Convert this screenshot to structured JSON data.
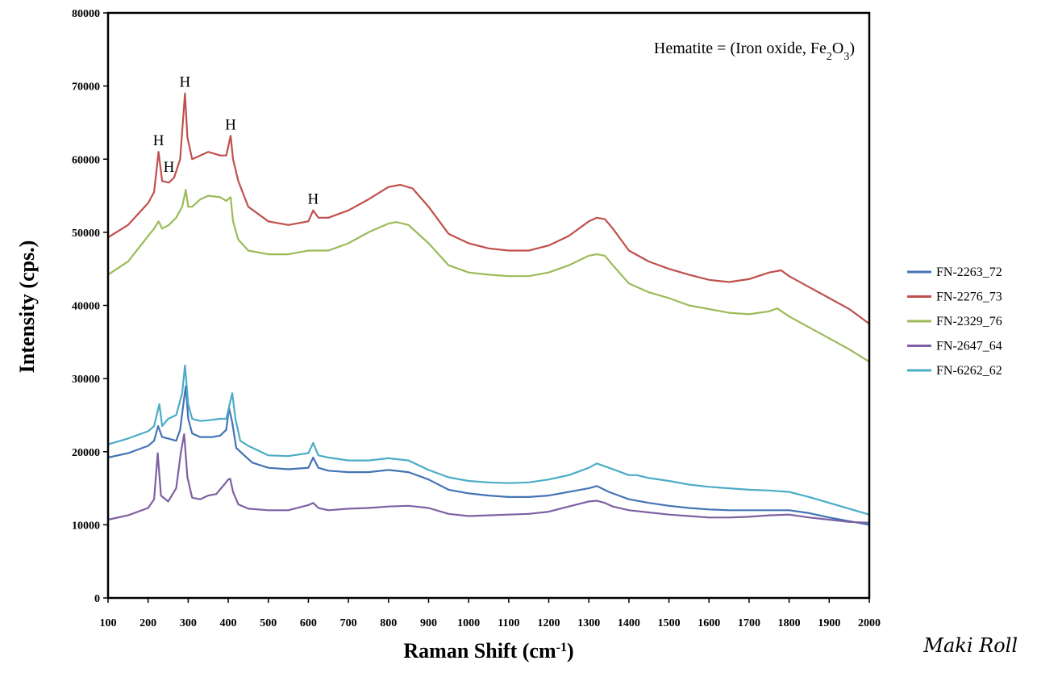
{
  "chart_data": {
    "type": "line",
    "title": "",
    "xlabel_main": "Raman Shift (cm",
    "xlabel_sup": "-1",
    "xlabel_end": ")",
    "ylabel": "Intensity (cps.)",
    "xlim": [
      100,
      2000
    ],
    "ylim": [
      0,
      80000
    ],
    "xticks": [
      100,
      200,
      300,
      400,
      500,
      600,
      700,
      800,
      900,
      1000,
      1100,
      1200,
      1300,
      1400,
      1500,
      1600,
      1700,
      1800,
      1900,
      2000
    ],
    "yticks": [
      0,
      10000,
      20000,
      30000,
      40000,
      50000,
      60000,
      70000,
      80000
    ],
    "grid": false,
    "legend_position": "right",
    "annotation": {
      "prefix": "Hematite = (Iron oxide, Fe",
      "sub1": "2",
      "mid": "O",
      "sub2": "3",
      "suffix": ")"
    },
    "peak_labels": [
      {
        "text": "H",
        "x": 226,
        "y": 61000
      },
      {
        "text": "H",
        "x": 252,
        "y": 57400
      },
      {
        "text": "H",
        "x": 292,
        "y": 69000
      },
      {
        "text": "H",
        "x": 406,
        "y": 63200
      },
      {
        "text": "H",
        "x": 612,
        "y": 53000
      }
    ],
    "series": [
      {
        "name": "FN-2263_72",
        "color": "#4473b5",
        "x": [
          100,
          150,
          200,
          215,
          225,
          235,
          250,
          270,
          280,
          288,
          294,
          300,
          310,
          330,
          360,
          380,
          395,
          402,
          410,
          420,
          440,
          460,
          500,
          550,
          600,
          612,
          625,
          650,
          700,
          750,
          800,
          850,
          900,
          950,
          1000,
          1050,
          1100,
          1150,
          1200,
          1250,
          1300,
          1320,
          1350,
          1400,
          1450,
          1500,
          1550,
          1600,
          1650,
          1700,
          1750,
          1800,
          1850,
          1900,
          1950,
          2000
        ],
        "y": [
          19200,
          19800,
          20800,
          21500,
          23500,
          22000,
          21800,
          21500,
          23000,
          26500,
          29000,
          24500,
          22500,
          22000,
          22000,
          22200,
          23000,
          26000,
          24000,
          20500,
          19500,
          18500,
          17800,
          17600,
          17800,
          19200,
          17800,
          17400,
          17200,
          17200,
          17500,
          17200,
          16200,
          14800,
          14300,
          14000,
          13800,
          13800,
          14000,
          14500,
          15000,
          15300,
          14500,
          13500,
          13000,
          12600,
          12300,
          12100,
          12000,
          12000,
          12000,
          12000,
          11600,
          11000,
          10500,
          10000
        ]
      },
      {
        "name": "FN-2276_73",
        "color": "#c0504d",
        "x": [
          100,
          150,
          200,
          215,
          226,
          235,
          252,
          265,
          280,
          292,
          298,
          310,
          330,
          350,
          380,
          395,
          406,
          412,
          425,
          450,
          500,
          550,
          600,
          612,
          625,
          650,
          700,
          750,
          800,
          830,
          860,
          900,
          950,
          1000,
          1050,
          1100,
          1150,
          1200,
          1250,
          1300,
          1320,
          1340,
          1360,
          1400,
          1450,
          1500,
          1550,
          1600,
          1650,
          1700,
          1750,
          1780,
          1800,
          1850,
          1900,
          1950,
          2000
        ],
        "y": [
          49300,
          51000,
          54000,
          55500,
          61000,
          57000,
          56800,
          57500,
          60000,
          69000,
          63000,
          60000,
          60500,
          61000,
          60500,
          60500,
          63200,
          60000,
          57000,
          53500,
          51500,
          51000,
          51500,
          53000,
          52000,
          52000,
          53000,
          54500,
          56200,
          56500,
          56000,
          53500,
          49800,
          48500,
          47800,
          47500,
          47500,
          48200,
          49500,
          51500,
          52000,
          51800,
          50500,
          47500,
          46000,
          45000,
          44200,
          43500,
          43200,
          43600,
          44500,
          44800,
          44000,
          42500,
          41000,
          39500,
          37500
        ]
      },
      {
        "name": "FN-2329_76",
        "color": "#9bbb59",
        "x": [
          100,
          150,
          200,
          215,
          226,
          235,
          252,
          270,
          285,
          294,
          300,
          310,
          330,
          350,
          380,
          395,
          406,
          412,
          425,
          450,
          500,
          550,
          600,
          650,
          700,
          750,
          800,
          820,
          850,
          900,
          950,
          1000,
          1050,
          1100,
          1150,
          1200,
          1250,
          1300,
          1320,
          1340,
          1360,
          1400,
          1450,
          1500,
          1550,
          1600,
          1650,
          1700,
          1750,
          1770,
          1800,
          1850,
          1900,
          1950,
          2000
        ],
        "y": [
          44200,
          46000,
          49500,
          50500,
          51500,
          50500,
          51000,
          52000,
          53500,
          55800,
          53500,
          53500,
          54500,
          55000,
          54800,
          54300,
          54800,
          51500,
          49000,
          47500,
          47000,
          47000,
          47500,
          47500,
          48500,
          50000,
          51200,
          51400,
          51000,
          48500,
          45500,
          44500,
          44200,
          44000,
          44000,
          44500,
          45500,
          46800,
          47000,
          46800,
          45500,
          43000,
          41800,
          41000,
          40000,
          39500,
          39000,
          38800,
          39200,
          39600,
          38500,
          37000,
          35500,
          34000,
          32300
        ]
      },
      {
        "name": "FN-2647_64",
        "color": "#7e60a2",
        "x": [
          100,
          150,
          200,
          215,
          224,
          232,
          250,
          270,
          282,
          290,
          298,
          310,
          330,
          350,
          370,
          390,
          400,
          405,
          412,
          425,
          450,
          500,
          550,
          600,
          612,
          625,
          650,
          700,
          750,
          800,
          850,
          900,
          950,
          1000,
          1050,
          1100,
          1150,
          1200,
          1250,
          1300,
          1320,
          1340,
          1360,
          1400,
          1450,
          1500,
          1550,
          1600,
          1650,
          1700,
          1750,
          1800,
          1850,
          1900,
          1950,
          2000
        ],
        "y": [
          10700,
          11300,
          12300,
          13500,
          19800,
          14000,
          13200,
          15000,
          20000,
          22400,
          16500,
          13700,
          13500,
          14000,
          14200,
          15500,
          16200,
          16300,
          14500,
          12800,
          12200,
          12000,
          12000,
          12700,
          13000,
          12300,
          12000,
          12200,
          12300,
          12500,
          12600,
          12300,
          11500,
          11200,
          11300,
          11400,
          11500,
          11800,
          12500,
          13200,
          13300,
          13000,
          12500,
          12000,
          11700,
          11400,
          11200,
          11000,
          11000,
          11100,
          11300,
          11400,
          11000,
          10700,
          10400,
          10300
        ]
      },
      {
        "name": "FN-6262_62",
        "color": "#4bacc6",
        "x": [
          100,
          150,
          200,
          215,
          228,
          235,
          250,
          270,
          285,
          292,
          300,
          310,
          330,
          350,
          380,
          395,
          410,
          418,
          430,
          450,
          500,
          550,
          600,
          612,
          625,
          650,
          700,
          750,
          800,
          850,
          900,
          950,
          1000,
          1050,
          1100,
          1150,
          1200,
          1250,
          1300,
          1320,
          1350,
          1400,
          1420,
          1450,
          1500,
          1550,
          1600,
          1650,
          1700,
          1750,
          1800,
          1850,
          1900,
          1950,
          2000
        ],
        "y": [
          21000,
          21800,
          22800,
          23500,
          26500,
          23500,
          24500,
          25000,
          28000,
          31800,
          26500,
          24500,
          24200,
          24300,
          24500,
          24500,
          28000,
          24500,
          21500,
          20800,
          19500,
          19400,
          19800,
          21200,
          19500,
          19200,
          18800,
          18800,
          19100,
          18800,
          17500,
          16500,
          16000,
          15800,
          15700,
          15800,
          16200,
          16800,
          17800,
          18400,
          17800,
          16800,
          16800,
          16400,
          16000,
          15500,
          15200,
          15000,
          14800,
          14700,
          14500,
          13800,
          13000,
          12200,
          11400
        ]
      }
    ]
  },
  "watermark": "Maki Roll"
}
